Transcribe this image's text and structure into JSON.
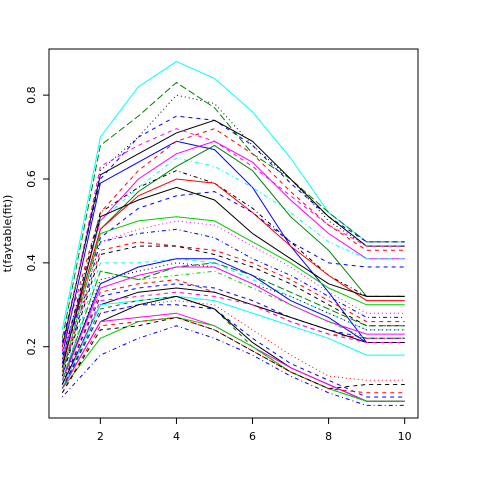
{
  "chart_data": {
    "type": "line",
    "title": "",
    "xlabel": "",
    "ylabel": "t(faytable(fit))",
    "xlim": [
      0.65,
      10.35
    ],
    "ylim": [
      0.03,
      0.91
    ],
    "x": [
      1,
      2,
      3,
      4,
      5,
      6,
      7,
      8,
      9,
      10
    ],
    "x_ticks": [
      2,
      4,
      6,
      8,
      10
    ],
    "y_ticks": [
      0.2,
      0.4,
      0.6,
      0.8
    ],
    "x_tick_labels": [
      "2",
      "4",
      "6",
      "8",
      "10"
    ],
    "y_tick_labels": [
      "0.2",
      "0.4",
      "0.6",
      "0.8"
    ],
    "grid": false,
    "legend": "none",
    "series": [
      {
        "color": "#00ffff",
        "dash": "solid",
        "values": [
          0.24,
          0.7,
          0.82,
          0.88,
          0.84,
          0.76,
          0.65,
          0.52,
          0.45,
          0.45
        ]
      },
      {
        "color": "#008000",
        "dash": "longdash",
        "values": [
          0.22,
          0.68,
          0.75,
          0.83,
          0.77,
          0.66,
          0.6,
          0.52,
          0.45,
          0.45
        ]
      },
      {
        "color": "#000000",
        "dash": "dotted",
        "values": [
          0.2,
          0.62,
          0.7,
          0.8,
          0.78,
          0.68,
          0.6,
          0.5,
          0.44,
          0.44
        ]
      },
      {
        "color": "#0000ff",
        "dash": "dashed",
        "values": [
          0.21,
          0.6,
          0.7,
          0.75,
          0.74,
          0.68,
          0.59,
          0.51,
          0.45,
          0.45
        ]
      },
      {
        "color": "#000000",
        "dash": "solid",
        "values": [
          0.2,
          0.61,
          0.66,
          0.71,
          0.74,
          0.69,
          0.6,
          0.51,
          0.44,
          0.44
        ]
      },
      {
        "color": "#ff00ff",
        "dash": "dashed",
        "values": [
          0.19,
          0.63,
          0.68,
          0.72,
          0.69,
          0.63,
          0.56,
          0.49,
          0.44,
          0.44
        ]
      },
      {
        "color": "#0000ff",
        "dash": "solid",
        "values": [
          0.18,
          0.59,
          0.64,
          0.69,
          0.67,
          0.58,
          0.44,
          0.33,
          0.21,
          0.21
        ]
      },
      {
        "color": "#ff0000",
        "dash": "dashed",
        "values": [
          0.2,
          0.52,
          0.62,
          0.69,
          0.72,
          0.66,
          0.57,
          0.49,
          0.43,
          0.43
        ]
      },
      {
        "color": "#ff00ff",
        "dash": "solid",
        "values": [
          0.17,
          0.5,
          0.6,
          0.66,
          0.69,
          0.64,
          0.55,
          0.47,
          0.41,
          0.41
        ]
      },
      {
        "color": "#00ffff",
        "dash": "dotdash",
        "values": [
          0.18,
          0.5,
          0.58,
          0.65,
          0.63,
          0.58,
          0.52,
          0.45,
          0.41,
          0.41
        ]
      },
      {
        "color": "#008000",
        "dash": "solid",
        "values": [
          0.16,
          0.48,
          0.57,
          0.63,
          0.68,
          0.62,
          0.51,
          0.43,
          0.32,
          0.32
        ]
      },
      {
        "color": "#000000",
        "dash": "dotdash",
        "values": [
          0.17,
          0.52,
          0.58,
          0.62,
          0.59,
          0.53,
          0.45,
          0.37,
          0.32,
          0.32
        ]
      },
      {
        "color": "#ff0000",
        "dash": "solid",
        "values": [
          0.16,
          0.48,
          0.56,
          0.6,
          0.59,
          0.52,
          0.44,
          0.37,
          0.31,
          0.31
        ]
      },
      {
        "color": "#0000ff",
        "dash": "dashed",
        "values": [
          0.16,
          0.46,
          0.53,
          0.56,
          0.57,
          0.52,
          0.45,
          0.4,
          0.39,
          0.39
        ]
      },
      {
        "color": "#000000",
        "dash": "solid",
        "values": [
          0.15,
          0.51,
          0.55,
          0.58,
          0.55,
          0.47,
          0.41,
          0.35,
          0.32,
          0.32
        ]
      },
      {
        "color": "#00cd00",
        "dash": "solid",
        "values": [
          0.14,
          0.47,
          0.5,
          0.51,
          0.5,
          0.45,
          0.4,
          0.34,
          0.3,
          0.3
        ]
      },
      {
        "color": "#ff00ff",
        "dash": "dotted",
        "values": [
          0.14,
          0.45,
          0.48,
          0.5,
          0.49,
          0.44,
          0.39,
          0.33,
          0.28,
          0.28
        ]
      },
      {
        "color": "#0000ff",
        "dash": "dotdash",
        "values": [
          0.13,
          0.45,
          0.47,
          0.48,
          0.46,
          0.41,
          0.37,
          0.32,
          0.27,
          0.27
        ]
      },
      {
        "color": "#ff0000",
        "dash": "dashed",
        "values": [
          0.14,
          0.43,
          0.45,
          0.44,
          0.43,
          0.4,
          0.36,
          0.31,
          0.26,
          0.26
        ]
      },
      {
        "color": "#000000",
        "dash": "dashed",
        "values": [
          0.13,
          0.42,
          0.44,
          0.44,
          0.42,
          0.39,
          0.35,
          0.3,
          0.25,
          0.25
        ]
      },
      {
        "color": "#008000",
        "dash": "longdash",
        "values": [
          0.12,
          0.38,
          0.36,
          0.39,
          0.4,
          0.37,
          0.33,
          0.29,
          0.25,
          0.25
        ]
      },
      {
        "color": "#00ffff",
        "dash": "dashed",
        "values": [
          0.12,
          0.4,
          0.4,
          0.41,
          0.4,
          0.36,
          0.32,
          0.28,
          0.24,
          0.24
        ]
      },
      {
        "color": "#0000ff",
        "dash": "solid",
        "values": [
          0.12,
          0.35,
          0.39,
          0.41,
          0.41,
          0.37,
          0.31,
          0.27,
          0.21,
          0.21
        ]
      },
      {
        "color": "#000000",
        "dash": "dotted",
        "values": [
          0.11,
          0.36,
          0.38,
          0.4,
          0.39,
          0.35,
          0.32,
          0.28,
          0.24,
          0.24
        ]
      },
      {
        "color": "#ff00ff",
        "dash": "solid",
        "values": [
          0.12,
          0.34,
          0.37,
          0.39,
          0.39,
          0.35,
          0.3,
          0.26,
          0.23,
          0.23
        ]
      },
      {
        "color": "#00cd00",
        "dash": "dotdash",
        "values": [
          0.12,
          0.38,
          0.36,
          0.37,
          0.38,
          0.34,
          0.3,
          0.26,
          0.22,
          0.22
        ]
      },
      {
        "color": "#ff0000",
        "dash": "dashed",
        "values": [
          0.11,
          0.33,
          0.35,
          0.36,
          0.33,
          0.3,
          0.26,
          0.23,
          0.22,
          0.22
        ]
      },
      {
        "color": "#0000ff",
        "dash": "dashed",
        "values": [
          0.11,
          0.32,
          0.34,
          0.35,
          0.34,
          0.31,
          0.27,
          0.24,
          0.22,
          0.22
        ]
      },
      {
        "color": "#000000",
        "dash": "solid",
        "values": [
          0.11,
          0.3,
          0.33,
          0.34,
          0.33,
          0.3,
          0.27,
          0.24,
          0.21,
          0.21
        ]
      },
      {
        "color": "#ff00ff",
        "dash": "dashed",
        "values": [
          0.1,
          0.31,
          0.32,
          0.33,
          0.32,
          0.3,
          0.26,
          0.23,
          0.21,
          0.21
        ]
      },
      {
        "color": "#00ffff",
        "dash": "solid",
        "values": [
          0.1,
          0.3,
          0.31,
          0.32,
          0.31,
          0.28,
          0.25,
          0.22,
          0.18,
          0.18
        ]
      },
      {
        "color": "#008000",
        "dash": "dashed",
        "values": [
          0.1,
          0.29,
          0.31,
          0.32,
          0.29,
          0.2,
          0.14,
          0.1,
          0.07,
          0.07
        ]
      },
      {
        "color": "#ff0000",
        "dash": "dotted",
        "values": [
          0.1,
          0.28,
          0.3,
          0.31,
          0.3,
          0.24,
          0.18,
          0.13,
          0.12,
          0.12
        ]
      },
      {
        "color": "#0000ff",
        "dash": "dashed",
        "values": [
          0.1,
          0.28,
          0.3,
          0.3,
          0.29,
          0.22,
          0.16,
          0.12,
          0.08,
          0.08
        ]
      },
      {
        "color": "#000000",
        "dash": "solid",
        "values": [
          0.1,
          0.26,
          0.3,
          0.32,
          0.29,
          0.21,
          0.15,
          0.11,
          0.07,
          0.07
        ]
      },
      {
        "color": "#ff00ff",
        "dash": "solid",
        "values": [
          0.1,
          0.26,
          0.27,
          0.28,
          0.25,
          0.2,
          0.15,
          0.11,
          0.07,
          0.07
        ]
      },
      {
        "color": "#00cd00",
        "dash": "solid",
        "values": [
          0.1,
          0.22,
          0.26,
          0.27,
          0.25,
          0.2,
          0.14,
          0.1,
          0.07,
          0.07
        ]
      },
      {
        "color": "#ff0000",
        "dash": "dashed",
        "values": [
          0.09,
          0.25,
          0.26,
          0.27,
          0.24,
          0.19,
          0.14,
          0.1,
          0.09,
          0.09
        ]
      },
      {
        "color": "#000000",
        "dash": "dashed",
        "values": [
          0.09,
          0.24,
          0.25,
          0.27,
          0.24,
          0.19,
          0.14,
          0.1,
          0.11,
          0.11
        ]
      },
      {
        "color": "#0000ff",
        "dash": "dotdash",
        "values": [
          0.08,
          0.18,
          0.22,
          0.25,
          0.22,
          0.18,
          0.13,
          0.09,
          0.06,
          0.06
        ]
      }
    ]
  }
}
